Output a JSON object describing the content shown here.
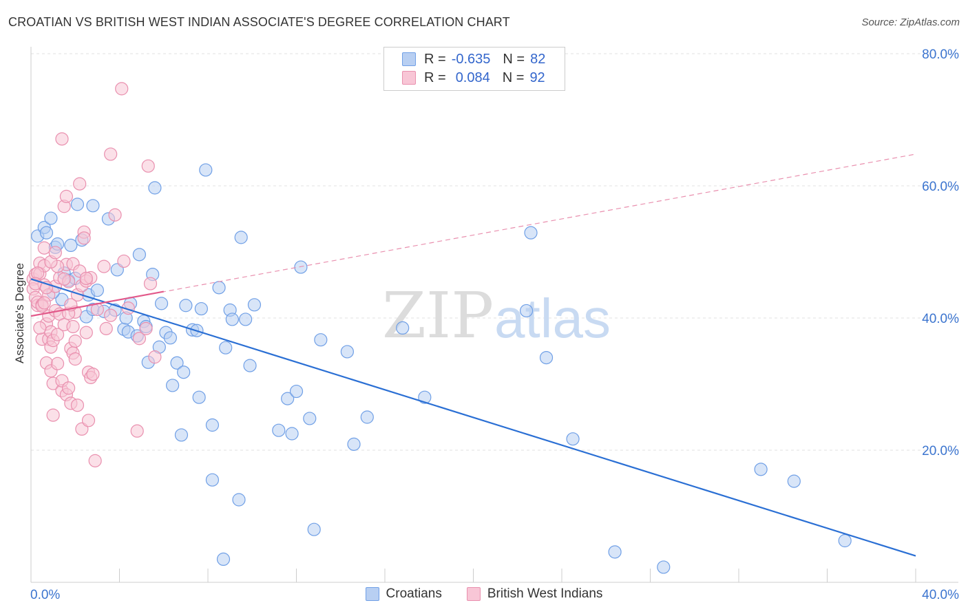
{
  "title": "CROATIAN VS BRITISH WEST INDIAN ASSOCIATE'S DEGREE CORRELATION CHART",
  "source": "Source: ZipAtlas.com",
  "watermark": {
    "zip": "ZIP",
    "atlas": "atlas"
  },
  "legend": {
    "rows": [
      {
        "r_label": "R =",
        "r_value": "-0.635",
        "n_label": "N =",
        "n_value": "82"
      },
      {
        "r_label": "R =",
        "r_value": "0.084",
        "n_label": "N =",
        "n_value": "92"
      }
    ]
  },
  "chart_data": {
    "type": "scatter",
    "title": "CROATIAN VS BRITISH WEST INDIAN ASSOCIATE'S DEGREE CORRELATION CHART",
    "xlabel": "",
    "ylabel": "Associate's Degree",
    "xlim": [
      0,
      40
    ],
    "ylim": [
      0,
      80
    ],
    "x_tick_labels": [
      "0.0%",
      "40.0%"
    ],
    "y_tick_labels": [
      "20.0%",
      "40.0%",
      "60.0%",
      "80.0%"
    ],
    "y_ticks": [
      20,
      40,
      60,
      80
    ],
    "grid": true,
    "series": [
      {
        "name": "Croatians",
        "color": "#6f9fe6",
        "fill": "#b8cff2",
        "R": -0.635,
        "N": 82,
        "trend": {
          "x": [
            0,
            40
          ],
          "y": [
            45.9,
            4.0
          ],
          "style": "solid",
          "color": "#2a6fd4"
        },
        "points": [
          [
            0.3,
            52.4
          ],
          [
            0.6,
            53.7
          ],
          [
            0.7,
            52.9
          ],
          [
            1.1,
            50.7
          ],
          [
            1.2,
            51.2
          ],
          [
            1.5,
            46.8
          ],
          [
            1.4,
            42.8
          ],
          [
            1.7,
            45.7
          ],
          [
            1.8,
            51.0
          ],
          [
            2.1,
            57.2
          ],
          [
            2.3,
            51.8
          ],
          [
            2.0,
            46.0
          ],
          [
            2.5,
            40.2
          ],
          [
            2.6,
            43.5
          ],
          [
            2.8,
            41.3
          ],
          [
            3.0,
            44.2
          ],
          [
            3.3,
            41.0
          ],
          [
            3.5,
            55.0
          ],
          [
            3.8,
            41.2
          ],
          [
            3.9,
            47.3
          ],
          [
            4.2,
            38.3
          ],
          [
            4.3,
            40.0
          ],
          [
            4.4,
            37.9
          ],
          [
            4.5,
            42.2
          ],
          [
            4.8,
            37.3
          ],
          [
            4.9,
            49.6
          ],
          [
            5.1,
            39.5
          ],
          [
            5.2,
            38.7
          ],
          [
            5.3,
            33.3
          ],
          [
            5.5,
            46.6
          ],
          [
            5.6,
            59.7
          ],
          [
            5.8,
            35.6
          ],
          [
            5.9,
            42.2
          ],
          [
            6.1,
            37.8
          ],
          [
            6.3,
            37.0
          ],
          [
            6.4,
            29.8
          ],
          [
            6.6,
            33.2
          ],
          [
            6.8,
            22.3
          ],
          [
            6.9,
            31.8
          ],
          [
            7.0,
            41.9
          ],
          [
            7.3,
            38.2
          ],
          [
            7.5,
            38.1
          ],
          [
            7.6,
            28.0
          ],
          [
            7.7,
            41.4
          ],
          [
            7.9,
            62.4
          ],
          [
            8.2,
            23.8
          ],
          [
            8.2,
            15.5
          ],
          [
            8.5,
            44.6
          ],
          [
            8.7,
            3.5
          ],
          [
            8.8,
            35.5
          ],
          [
            9.0,
            41.2
          ],
          [
            9.1,
            39.8
          ],
          [
            9.4,
            12.5
          ],
          [
            9.5,
            52.2
          ],
          [
            9.7,
            39.8
          ],
          [
            9.9,
            32.8
          ],
          [
            10.1,
            42.0
          ],
          [
            11.2,
            23.0
          ],
          [
            11.6,
            27.8
          ],
          [
            11.8,
            22.5
          ],
          [
            12.0,
            28.9
          ],
          [
            12.2,
            47.7
          ],
          [
            12.6,
            24.8
          ],
          [
            12.8,
            8.0
          ],
          [
            13.1,
            36.7
          ],
          [
            14.3,
            34.9
          ],
          [
            14.6,
            20.9
          ],
          [
            15.2,
            25.0
          ],
          [
            16.8,
            38.5
          ],
          [
            17.8,
            28.0
          ],
          [
            22.4,
            41.1
          ],
          [
            22.6,
            52.9
          ],
          [
            23.3,
            34.0
          ],
          [
            24.5,
            21.7
          ],
          [
            26.4,
            4.6
          ],
          [
            28.6,
            2.3
          ],
          [
            33.0,
            17.1
          ],
          [
            34.5,
            15.3
          ],
          [
            36.8,
            6.3
          ],
          [
            0.9,
            55.1
          ],
          [
            2.8,
            57.0
          ],
          [
            1.0,
            43.9
          ]
        ]
      },
      {
        "name": "British West Indians",
        "color": "#e98fae",
        "fill": "#f8c6d6",
        "R": 0.084,
        "N": 92,
        "trend": {
          "x": [
            0,
            6.0
          ],
          "y": [
            40.3,
            44.0
          ],
          "style": "solid",
          "color": "#e2598a"
        },
        "trend_extension": {
          "x": [
            0,
            40
          ],
          "y": [
            40.3,
            64.8
          ],
          "style": "dashed",
          "color": "#e98fae"
        },
        "points": [
          [
            0.1,
            45.9
          ],
          [
            0.1,
            44.4
          ],
          [
            0.2,
            46.6
          ],
          [
            0.2,
            43.1
          ],
          [
            0.3,
            41.9
          ],
          [
            0.3,
            42.4
          ],
          [
            0.4,
            48.3
          ],
          [
            0.4,
            46.7
          ],
          [
            0.5,
            36.8
          ],
          [
            0.5,
            42.0
          ],
          [
            0.6,
            50.6
          ],
          [
            0.6,
            45.0
          ],
          [
            0.6,
            47.9
          ],
          [
            0.7,
            33.2
          ],
          [
            0.7,
            39.1
          ],
          [
            0.8,
            36.8
          ],
          [
            0.8,
            40.3
          ],
          [
            0.8,
            43.5
          ],
          [
            0.9,
            35.6
          ],
          [
            0.9,
            37.9
          ],
          [
            0.9,
            32.0
          ],
          [
            1.0,
            25.3
          ],
          [
            1.0,
            30.1
          ],
          [
            1.0,
            36.6
          ],
          [
            1.1,
            44.8
          ],
          [
            1.1,
            41.1
          ],
          [
            1.2,
            37.5
          ],
          [
            1.2,
            33.1
          ],
          [
            1.3,
            40.6
          ],
          [
            1.3,
            46.1
          ],
          [
            1.4,
            67.1
          ],
          [
            1.4,
            29.0
          ],
          [
            1.4,
            30.5
          ],
          [
            1.5,
            39.0
          ],
          [
            1.5,
            56.9
          ],
          [
            1.6,
            58.4
          ],
          [
            1.6,
            48.1
          ],
          [
            1.6,
            28.4
          ],
          [
            1.7,
            45.5
          ],
          [
            1.7,
            29.4
          ],
          [
            1.8,
            35.4
          ],
          [
            1.8,
            27.1
          ],
          [
            1.9,
            48.2
          ],
          [
            1.9,
            34.7
          ],
          [
            1.9,
            38.7
          ],
          [
            2.0,
            33.8
          ],
          [
            2.0,
            40.9
          ],
          [
            2.1,
            43.5
          ],
          [
            2.1,
            26.8
          ],
          [
            2.2,
            60.3
          ],
          [
            2.2,
            47.1
          ],
          [
            2.3,
            44.9
          ],
          [
            2.3,
            23.2
          ],
          [
            2.4,
            53.0
          ],
          [
            2.4,
            52.1
          ],
          [
            2.5,
            45.6
          ],
          [
            2.5,
            37.8
          ],
          [
            2.6,
            31.8
          ],
          [
            2.6,
            24.5
          ],
          [
            2.7,
            46.1
          ],
          [
            2.7,
            31.0
          ],
          [
            2.8,
            31.5
          ],
          [
            2.9,
            18.4
          ],
          [
            3.0,
            41.3
          ],
          [
            3.3,
            47.8
          ],
          [
            3.4,
            38.4
          ],
          [
            3.6,
            40.4
          ],
          [
            3.6,
            64.8
          ],
          [
            3.8,
            55.6
          ],
          [
            4.1,
            74.7
          ],
          [
            4.2,
            48.6
          ],
          [
            4.4,
            41.5
          ],
          [
            4.8,
            22.9
          ],
          [
            4.9,
            36.9
          ],
          [
            5.2,
            38.4
          ],
          [
            5.3,
            63.0
          ],
          [
            5.4,
            45.2
          ],
          [
            5.6,
            34.1
          ],
          [
            0.3,
            46.8
          ],
          [
            0.2,
            45.2
          ],
          [
            0.4,
            38.5
          ],
          [
            0.5,
            41.8
          ],
          [
            1.2,
            47.8
          ],
          [
            1.7,
            40.7
          ],
          [
            2.0,
            36.5
          ],
          [
            0.7,
            44.6
          ],
          [
            0.9,
            48.5
          ],
          [
            1.5,
            45.9
          ],
          [
            0.6,
            42.3
          ],
          [
            1.1,
            49.9
          ],
          [
            1.8,
            42.0
          ],
          [
            2.5,
            46.0
          ]
        ]
      }
    ]
  }
}
